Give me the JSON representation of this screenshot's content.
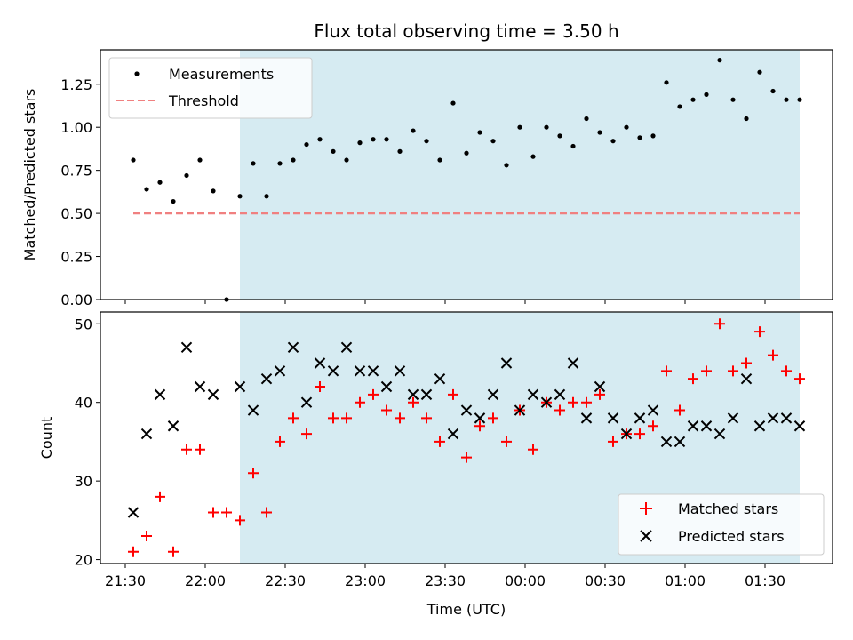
{
  "title": "Flux total observing time = 3.50 h",
  "colors": {
    "measurement": "#000000",
    "threshold": "#f08080",
    "matched": "#ff0000",
    "predicted": "#000000",
    "shade": "#add8e6"
  },
  "chart_data": [
    {
      "type": "scatter",
      "ylabel": "Matched/Predicted stars",
      "ylim": [
        0,
        1.45
      ],
      "yticks": [
        "0.00",
        "0.25",
        "0.50",
        "0.75",
        "1.00",
        "1.25"
      ],
      "shaded_region": {
        "start": "22:13",
        "end": "01:43"
      },
      "legend": {
        "placement": "upper-left",
        "entries": [
          "Measurements",
          "Threshold"
        ]
      },
      "series": [
        {
          "name": "Measurements",
          "x": [
            "21:33",
            "21:38",
            "21:43",
            "21:48",
            "21:53",
            "21:58",
            "22:03",
            "22:08",
            "22:13",
            "22:18",
            "22:23",
            "22:28",
            "22:33",
            "22:38",
            "22:43",
            "22:48",
            "22:53",
            "22:58",
            "23:03",
            "23:08",
            "23:13",
            "23:18",
            "23:23",
            "23:28",
            "23:33",
            "23:38",
            "23:43",
            "23:48",
            "23:53",
            "23:58",
            "00:03",
            "00:08",
            "00:13",
            "00:18",
            "00:23",
            "00:28",
            "00:33",
            "00:38",
            "00:43",
            "00:48",
            "00:53",
            "00:58",
            "01:03",
            "01:08",
            "01:13",
            "01:18",
            "01:23",
            "01:28",
            "01:33",
            "01:38",
            "01:43"
          ],
          "y": [
            0.81,
            0.64,
            0.68,
            0.57,
            0.72,
            0.81,
            0.63,
            0.0,
            0.6,
            0.79,
            0.6,
            0.79,
            0.81,
            0.9,
            0.93,
            0.86,
            0.81,
            0.91,
            0.93,
            0.93,
            0.86,
            0.98,
            0.92,
            0.81,
            1.14,
            0.85,
            0.97,
            0.92,
            0.78,
            1.0,
            0.83,
            1.0,
            0.95,
            0.89,
            1.05,
            0.97,
            0.92,
            1.0,
            0.94,
            0.95,
            1.26,
            1.12,
            1.16,
            1.19,
            1.39,
            1.16,
            1.05,
            1.32,
            1.21,
            1.16,
            1.16
          ]
        },
        {
          "name": "Threshold",
          "x": [
            "21:33",
            "01:43"
          ],
          "y": [
            0.5,
            0.5
          ]
        }
      ]
    },
    {
      "type": "scatter",
      "xlabel": "Time (UTC)",
      "ylabel": "Count",
      "ylim": [
        19.5,
        51.5
      ],
      "yticks": [
        "20",
        "30",
        "40",
        "50"
      ],
      "xticks": [
        "21:30",
        "22:00",
        "22:30",
        "23:00",
        "23:30",
        "00:00",
        "00:30",
        "01:00",
        "01:30"
      ],
      "shaded_region": {
        "start": "22:13",
        "end": "01:43"
      },
      "legend": {
        "placement": "lower-right",
        "entries": [
          "Matched stars",
          "Predicted stars"
        ]
      },
      "series": [
        {
          "name": "Matched stars",
          "x": [
            "21:33",
            "21:38",
            "21:43",
            "21:48",
            "21:53",
            "21:58",
            "22:03",
            "22:08",
            "22:13",
            "22:18",
            "22:23",
            "22:28",
            "22:33",
            "22:38",
            "22:43",
            "22:48",
            "22:53",
            "22:58",
            "23:03",
            "23:08",
            "23:13",
            "23:18",
            "23:23",
            "23:28",
            "23:33",
            "23:38",
            "23:43",
            "23:48",
            "23:53",
            "23:58",
            "00:03",
            "00:08",
            "00:13",
            "00:18",
            "00:23",
            "00:28",
            "00:33",
            "00:38",
            "00:43",
            "00:48",
            "00:53",
            "00:58",
            "01:03",
            "01:08",
            "01:13",
            "01:18",
            "01:23",
            "01:28",
            "01:33",
            "01:38",
            "01:43"
          ],
          "y": [
            21,
            23,
            28,
            21,
            34,
            34,
            26,
            26,
            25,
            31,
            26,
            35,
            38,
            36,
            42,
            38,
            38,
            40,
            41,
            39,
            38,
            40,
            38,
            35,
            41,
            33,
            37,
            38,
            35,
            39,
            34,
            40,
            39,
            40,
            40,
            41,
            35,
            36,
            36,
            37,
            44,
            39,
            43,
            44,
            50,
            44,
            45,
            49,
            46,
            44,
            43
          ]
        },
        {
          "name": "Predicted stars",
          "x": [
            "21:33",
            "21:38",
            "21:43",
            "21:48",
            "21:53",
            "21:58",
            "22:03",
            "22:13",
            "22:18",
            "22:23",
            "22:28",
            "22:33",
            "22:38",
            "22:43",
            "22:48",
            "22:53",
            "22:58",
            "23:03",
            "23:08",
            "23:13",
            "23:18",
            "23:23",
            "23:28",
            "23:33",
            "23:38",
            "23:43",
            "23:48",
            "23:53",
            "23:58",
            "00:03",
            "00:08",
            "00:13",
            "00:18",
            "00:23",
            "00:28",
            "00:33",
            "00:38",
            "00:43",
            "00:48",
            "00:53",
            "00:58",
            "01:03",
            "01:08",
            "01:13",
            "01:18",
            "01:23",
            "01:28",
            "01:33",
            "01:38",
            "01:43"
          ],
          "y": [
            26,
            36,
            41,
            37,
            47,
            42,
            41,
            42,
            39,
            43,
            44,
            47,
            40,
            45,
            44,
            47,
            44,
            44,
            42,
            44,
            41,
            41,
            43,
            36,
            39,
            38,
            41,
            45,
            39,
            41,
            40,
            41,
            45,
            38,
            42,
            38,
            36,
            38,
            39,
            35,
            35,
            37,
            37,
            36,
            38,
            43,
            37,
            38,
            38,
            37
          ]
        }
      ]
    }
  ]
}
